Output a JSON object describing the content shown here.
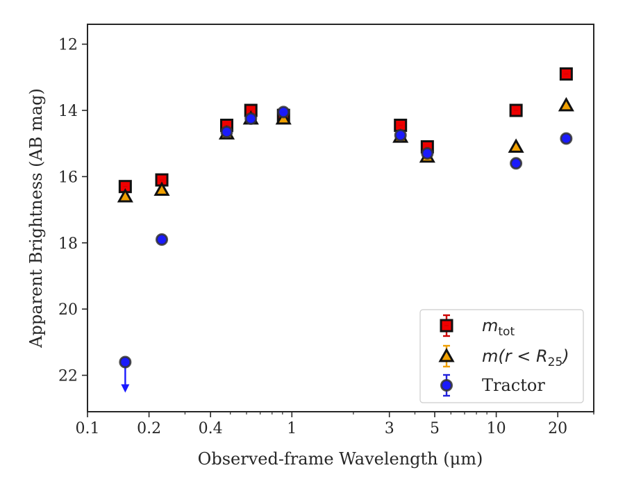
{
  "chart_data": {
    "type": "scatter",
    "xlabel": "Observed-frame Wavelength (μm)",
    "ylabel": "Apparent Brightness (AB mag)",
    "x_scale": "log",
    "y_inverted": true,
    "xlim": [
      0.1,
      30
    ],
    "ylim": [
      23.1,
      11.4
    ],
    "x_ticks": [
      {
        "value": 0.1,
        "label": "0.1"
      },
      {
        "value": 0.2,
        "label": "0.2"
      },
      {
        "value": 0.4,
        "label": "0.4"
      },
      {
        "value": 1,
        "label": "1"
      },
      {
        "value": 3,
        "label": "3"
      },
      {
        "value": 5,
        "label": "5"
      },
      {
        "value": 10,
        "label": "10"
      },
      {
        "value": 20,
        "label": "20"
      }
    ],
    "y_ticks": [
      {
        "value": 12,
        "label": "12"
      },
      {
        "value": 14,
        "label": "14"
      },
      {
        "value": 16,
        "label": "16"
      },
      {
        "value": 18,
        "label": "18"
      },
      {
        "value": 20,
        "label": "20"
      },
      {
        "value": 22,
        "label": "22"
      }
    ],
    "grid": false,
    "legend_position": "bottom-right",
    "series": [
      {
        "name": "m_tot",
        "marker": "square",
        "fill": "#ee0000",
        "errcolor": "#cc0000",
        "x": [
          0.153,
          0.231,
          0.48,
          0.63,
          0.91,
          3.4,
          4.6,
          12.5,
          22.0
        ],
        "y": [
          16.3,
          16.1,
          14.45,
          14.0,
          14.15,
          14.45,
          15.1,
          14.0,
          12.9
        ]
      },
      {
        "name": "m(r<R25)",
        "marker": "triangle",
        "fill": "#f0a000",
        "errcolor": "#f0a000",
        "x": [
          0.153,
          0.231,
          0.48,
          0.63,
          0.91,
          3.4,
          4.6,
          12.5,
          22.0
        ],
        "y": [
          16.6,
          16.4,
          14.7,
          14.25,
          14.25,
          14.8,
          15.4,
          15.1,
          13.85
        ]
      },
      {
        "name": "Tractor",
        "marker": "circle",
        "fill": "#1a1aff",
        "errcolor": "#2222dd",
        "x": [
          0.231,
          0.48,
          0.63,
          0.91,
          3.4,
          4.6,
          12.5,
          22.0
        ],
        "y": [
          17.9,
          14.65,
          14.25,
          14.05,
          14.75,
          15.3,
          15.6,
          14.85
        ]
      }
    ],
    "upper_limits": [
      {
        "series": "Tractor",
        "x": 0.153,
        "y": 21.6
      }
    ]
  },
  "legend": {
    "entries": [
      {
        "base": "m",
        "sub": "tot",
        "suffix": ""
      },
      {
        "base": "m(r < R",
        "sub": "25",
        "suffix": ")"
      },
      {
        "base": "Tractor",
        "sub": "",
        "suffix": ""
      }
    ]
  }
}
